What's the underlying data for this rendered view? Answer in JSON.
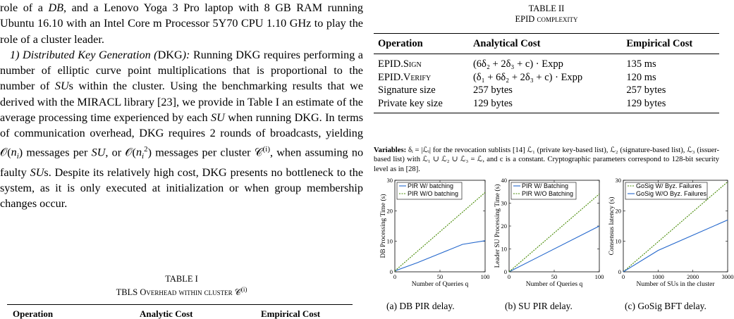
{
  "left": {
    "para1": "role of a DB, and a Lenovo Yoga 3 Pro laptop with 8 GB RAM running Ubuntu 16.10 with an Intel Core m Processor 5Y70 CPU 1.10 GHz to play the role of a cluster leader.",
    "sec_num": "1)",
    "sec_title": "Distributed Key Generation (",
    "sec_abbr": "DKG",
    "sec_close": "):",
    "para2_a": "Running DKG requires performing a number of elliptic curve point multiplications that is proportional to the number of",
    "para2_b": "s within the cluster. Using the benchmarking results that we derived with the MIRACL library [23], we provide in Table I an estimate of the average processing time experienced by each",
    "para2_c": "when running DKG. In terms of communication overhead, DKG requires 2 rounds of broadcasts, yielding",
    "para2_d": "messages per",
    "para2_e": ", or",
    "para2_f": "messages per cluster",
    "para2_g": ", when assuming no faulty",
    "para2_h": "s. Despite its relatively high cost, DKG presents no bottleneck to the system, as it is only executed at initialization or when group membership changes occur.",
    "table1_label": "TABLE I",
    "table1_title": "TBLS Overhead within cluster",
    "table1_headers": [
      "Operation",
      "Analytic Cost",
      "Empirical Cost"
    ]
  },
  "table2": {
    "label": "TABLE II",
    "title": "EPID complexity",
    "headers": [
      "Operation",
      "Analytical Cost",
      "Empirical Cost"
    ],
    "rows": [
      [
        "EPID.Sign",
        "(6δ₂ + 2δ₃ + c) · Expp",
        "135 ms"
      ],
      [
        "EPID.Verify",
        "(δ₁ + 6δ₂ + 2δ₃ + c) · Expp",
        "120 ms"
      ],
      [
        "Signature size",
        "257 bytes",
        "257 bytes"
      ],
      [
        "Private key size",
        "129 bytes",
        "129 bytes"
      ]
    ],
    "note_label": "Variables:",
    "note_text": "δᵢ = |ℒᵢ| for the revocation sublists [14] ℒ₁ (private key-based list), ℒ₂ (signature-based list), ℒ₃ (issuer-based list) with ℒ₁ ∪ ℒ₂ ∪ ℒ₃ = ℒ, and c is a constant. Cryptographic parameters correspond to 128-bit security level as in [28]."
  },
  "chart_data": [
    {
      "type": "line",
      "ylabel": "DB Processing Time (s)",
      "xlabel": "Number of Queries q",
      "xlim": [
        0,
        100
      ],
      "ylim": [
        0,
        30
      ],
      "xticks": [
        0,
        50,
        100
      ],
      "yticks": [
        0,
        10,
        20,
        30
      ],
      "legend_position": "top-left",
      "series": [
        {
          "name": "PIR W/ batching",
          "color": "#2266cc",
          "dash": false,
          "x": [
            0,
            25,
            50,
            75,
            100
          ],
          "y": [
            0.3,
            3,
            6,
            9,
            10.2
          ]
        },
        {
          "name": "PIR W/O batching",
          "color": "#448800",
          "dash": true,
          "x": [
            0,
            100
          ],
          "y": [
            0.3,
            26
          ]
        }
      ],
      "caption": "(a) DB PIR delay."
    },
    {
      "type": "line",
      "ylabel": "Leader SU Processing Time (s)",
      "xlabel": "Number of Queries q",
      "xlim": [
        0,
        100
      ],
      "ylim": [
        0,
        40
      ],
      "xticks": [
        0,
        50,
        100
      ],
      "yticks": [
        0,
        10,
        20,
        30,
        40
      ],
      "legend_position": "top-left",
      "series": [
        {
          "name": "PIR W/ Batching",
          "color": "#2266cc",
          "dash": false,
          "x": [
            0,
            100
          ],
          "y": [
            0,
            20
          ]
        },
        {
          "name": "PIR W/O Batching",
          "color": "#448800",
          "dash": true,
          "x": [
            0,
            100
          ],
          "y": [
            0,
            34
          ]
        }
      ],
      "caption": "(b) SU PIR delay."
    },
    {
      "type": "line",
      "ylabel": "Consensus latency (s)",
      "xlabel": "Number of SUs in the cluster",
      "xlim": [
        0,
        3000
      ],
      "ylim": [
        0,
        30
      ],
      "xticks": [
        0,
        1000,
        2000,
        3000
      ],
      "yticks": [
        0,
        10,
        20,
        30
      ],
      "legend_position": "top-left",
      "series": [
        {
          "name": "GoSig W/ Byz. Failures",
          "color": "#448800",
          "dash": true,
          "x": [
            0,
            3000
          ],
          "y": [
            0,
            29.5
          ]
        },
        {
          "name": "GoSig W/O Byz. Failures",
          "color": "#2266cc",
          "dash": false,
          "x": [
            0,
            1000,
            2000,
            3000
          ],
          "y": [
            0,
            7,
            12,
            17
          ]
        }
      ],
      "caption": "(c) GoSig BFT delay."
    }
  ]
}
